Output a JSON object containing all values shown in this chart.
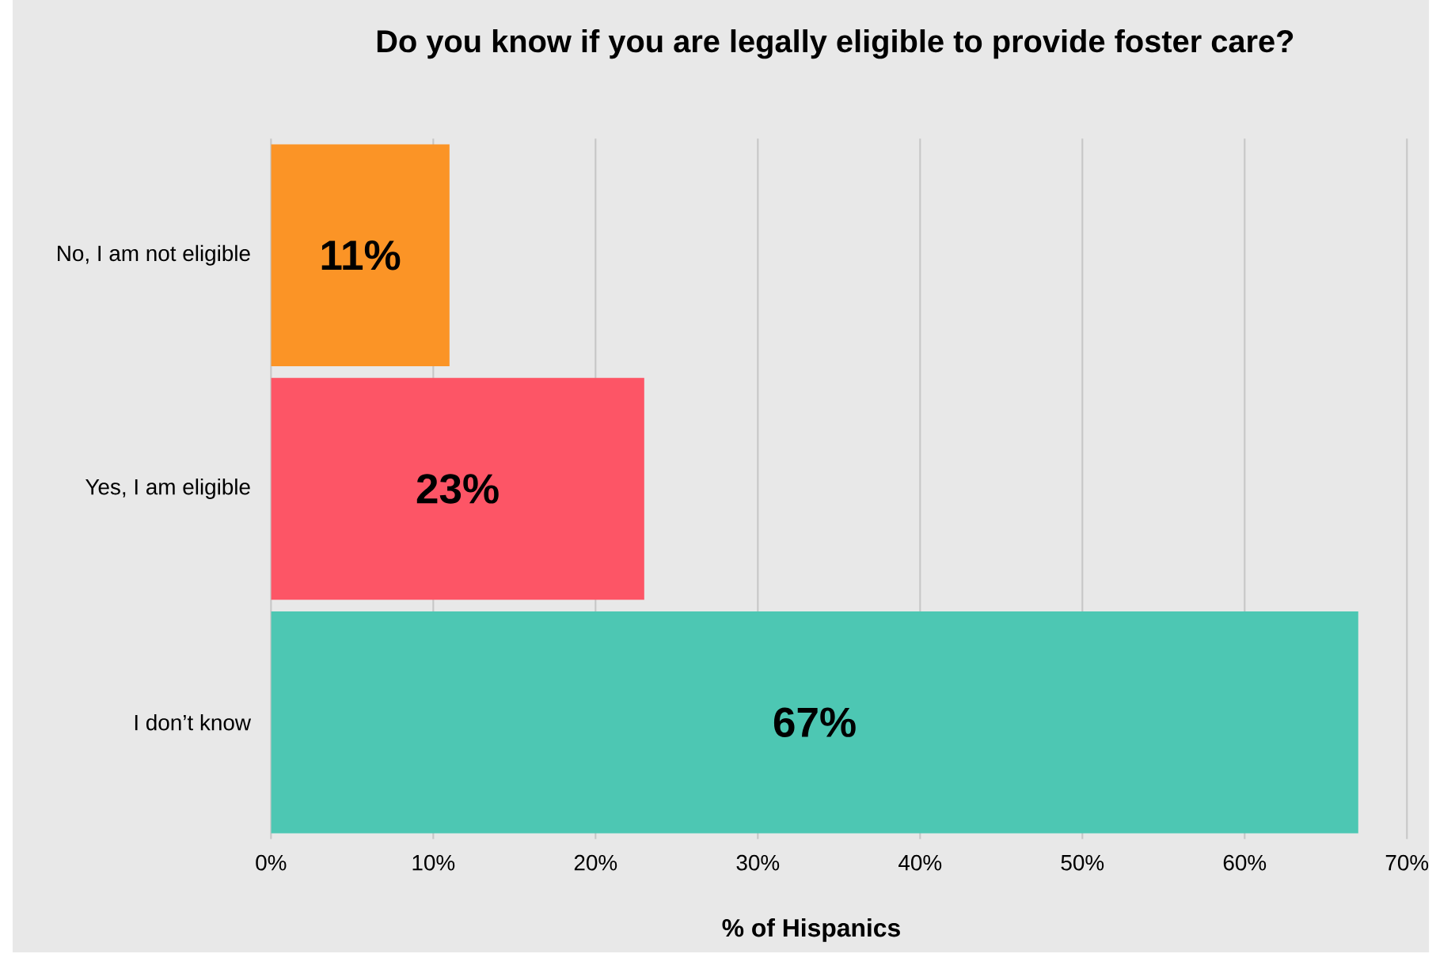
{
  "chart_data": {
    "type": "bar",
    "orientation": "horizontal",
    "title": "Do you know if you are legally eligible to provide foster care?",
    "xlabel": "% of Hispanics",
    "categories": [
      "No, I am not eligible",
      "Yes, I am eligible",
      "I don’t know"
    ],
    "values": [
      11,
      23,
      67
    ],
    "colors": [
      "#fb9426",
      "#fd5566",
      "#4dc7b3"
    ],
    "value_labels": [
      "11%",
      "23%",
      "67%"
    ],
    "xlim": [
      0,
      70
    ],
    "xticks": [
      {
        "value": 0,
        "label": "0%"
      },
      {
        "value": 10,
        "label": "10%"
      },
      {
        "value": 20,
        "label": "20%"
      },
      {
        "value": 30,
        "label": "30%"
      },
      {
        "value": 40,
        "label": "40%"
      },
      {
        "value": 50,
        "label": "50%"
      },
      {
        "value": 60,
        "label": "60%"
      },
      {
        "value": 70,
        "label": "70%"
      }
    ],
    "grid": "x"
  }
}
